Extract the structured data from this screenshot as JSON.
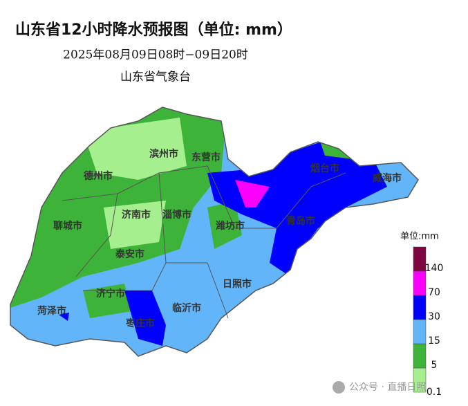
{
  "header": {
    "title": "山东省12小时降水预报图（单位: mm）",
    "period": "2025年08月09日08时−09日20时",
    "issuer": "山东省气象台"
  },
  "cities": [
    "德州市",
    "滨州市",
    "东营市",
    "烟台市",
    "威海市",
    "聊城市",
    "济南市",
    "淄博市",
    "潍坊市",
    "青岛市",
    "泰安市",
    "日照市",
    "济宁市",
    "菏泽市",
    "临沂市",
    "枣庄市"
  ],
  "legend": {
    "title": "单位:mm",
    "levels": [
      0.1,
      5,
      15,
      30,
      70,
      140
    ],
    "colors": [
      "#a6ef8f",
      "#3eb339",
      "#62b5f8",
      "#0000fe",
      "#fb00fa",
      "#7d0440"
    ]
  },
  "watermark": "公众号 · 直播日照"
}
